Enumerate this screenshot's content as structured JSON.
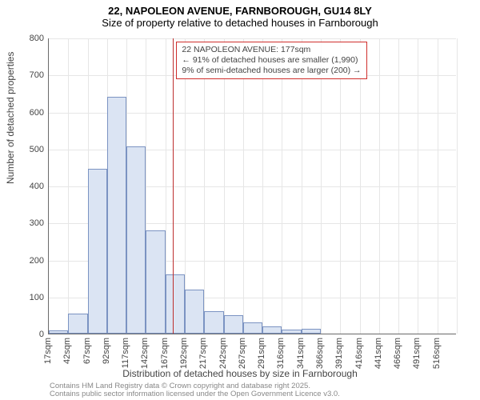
{
  "chart": {
    "type": "histogram",
    "title_line1": "22, NAPOLEON AVENUE, FARNBOROUGH, GU14 8LY",
    "title_line2": "Size of property relative to detached houses in Farnborough",
    "y_axis_label": "Number of detached properties",
    "x_axis_label": "Distribution of detached houses by size in Farnborough",
    "ylim": [
      0,
      800
    ],
    "ytick_step": 100,
    "bar_color": "#dbe4f3",
    "bar_border_color": "#7b93c2",
    "grid_color": "#e6e6e6",
    "axis_color": "#6a6a6a",
    "background_color": "#ffffff",
    "reference_line": {
      "x_value": 177,
      "color": "#bd2f2e"
    },
    "categories": [
      "17sqm",
      "42sqm",
      "67sqm",
      "92sqm",
      "117sqm",
      "142sqm",
      "167sqm",
      "192sqm",
      "217sqm",
      "242sqm",
      "267sqm",
      "291sqm",
      "316sqm",
      "341sqm",
      "366sqm",
      "391sqm",
      "416sqm",
      "441sqm",
      "466sqm",
      "491sqm",
      "516sqm"
    ],
    "values": [
      8,
      55,
      445,
      640,
      505,
      280,
      160,
      120,
      60,
      50,
      30,
      20,
      10,
      12,
      0,
      0,
      0,
      0,
      0,
      0,
      0
    ],
    "annotation": {
      "line1": "22 NAPOLEON AVENUE: 177sqm",
      "line2": "← 91% of detached houses are smaller (1,990)",
      "line3": "9% of semi-detached houses are larger (200) →",
      "border_color": "#cf2e2c"
    },
    "footer_line1": "Contains HM Land Registry data © Crown copyright and database right 2025.",
    "footer_line2": "Contains public sector information licensed under the Open Government Licence v3.0.",
    "title_fontsize": 13,
    "label_fontsize": 12,
    "tick_fontsize": 11
  }
}
